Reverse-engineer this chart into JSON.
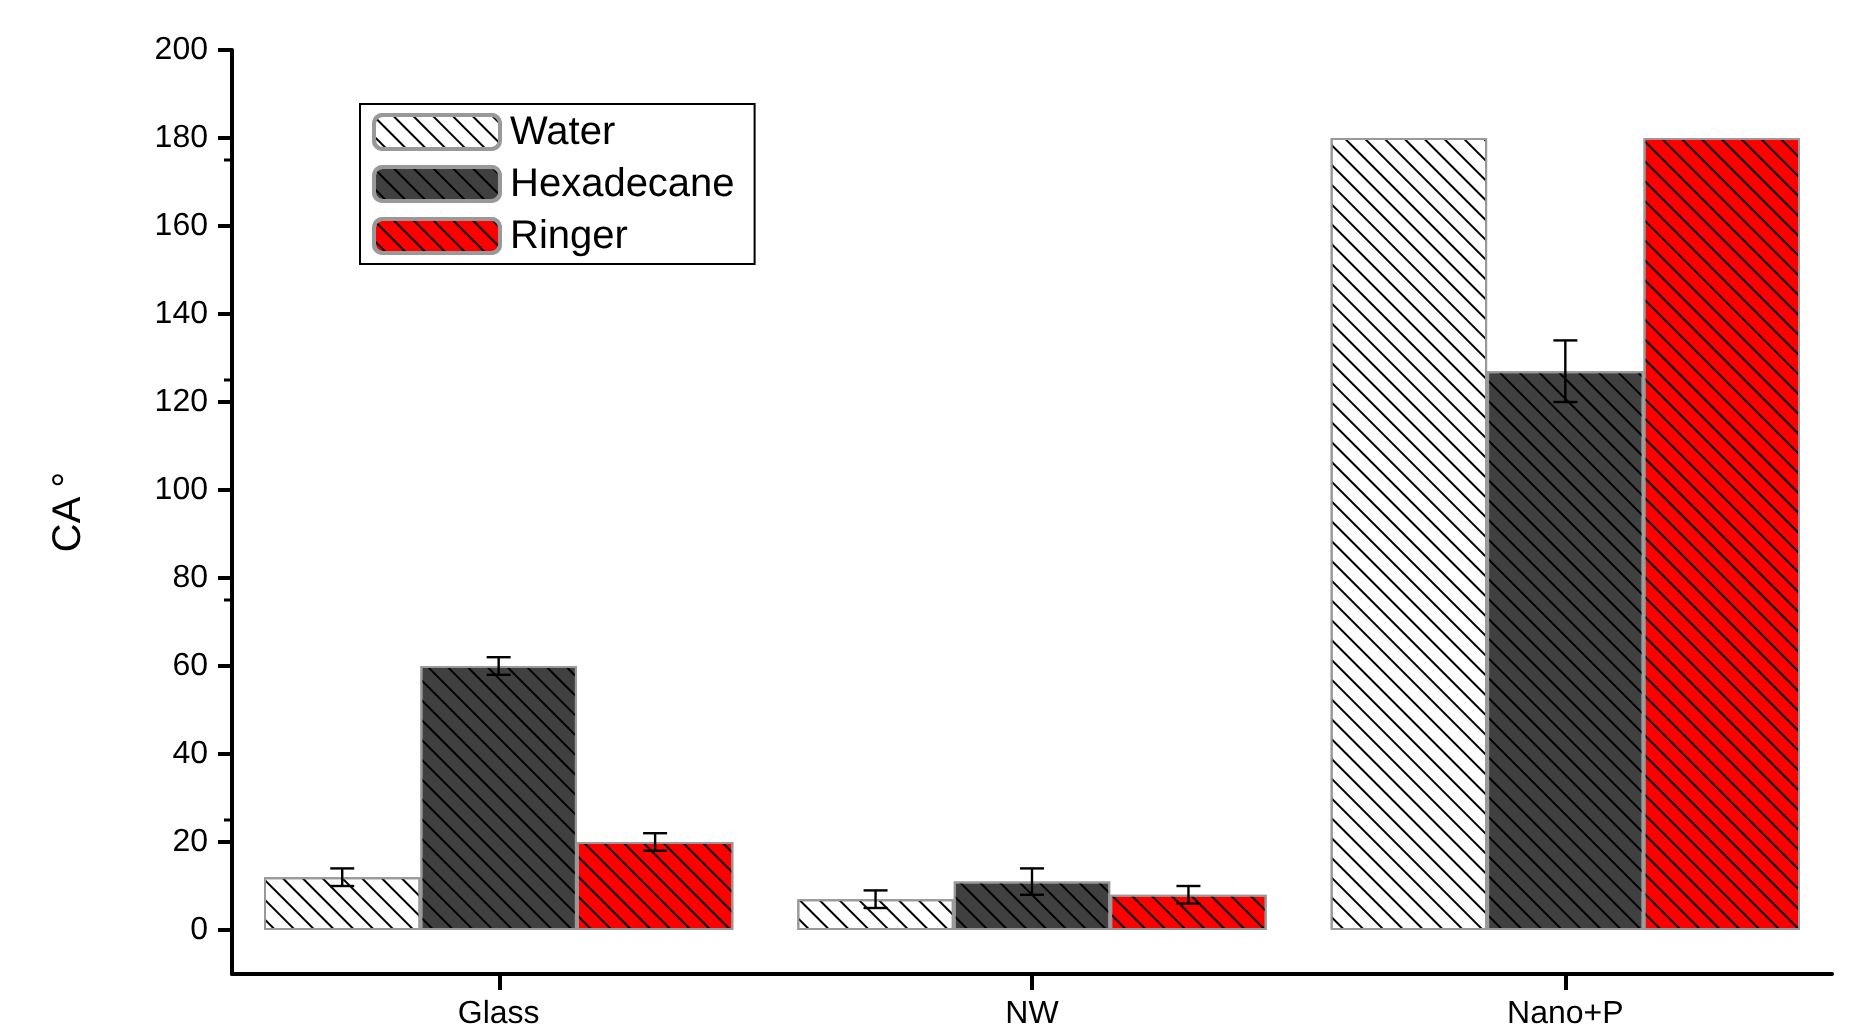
{
  "chart_data": {
    "type": "bar",
    "ylabel": "CA °",
    "categories": [
      "Glass",
      "NW",
      "Nano+P"
    ],
    "series": [
      {
        "name": "Water",
        "color": "#ffffff",
        "values": [
          12,
          7,
          180
        ],
        "errors": [
          2,
          2,
          null
        ]
      },
      {
        "name": "Hexadecane",
        "color": "#404040",
        "values": [
          60,
          11,
          127
        ],
        "errors": [
          2,
          3,
          7
        ]
      },
      {
        "name": "Ringer",
        "color": "#ff0000",
        "values": [
          20,
          8,
          180
        ],
        "errors": [
          2,
          2,
          null
        ]
      }
    ],
    "ylim": [
      -10,
      200
    ],
    "yticks": [
      0,
      20,
      40,
      60,
      80,
      100,
      120,
      140,
      160,
      180,
      200
    ],
    "grid": false,
    "legend": "top left"
  }
}
